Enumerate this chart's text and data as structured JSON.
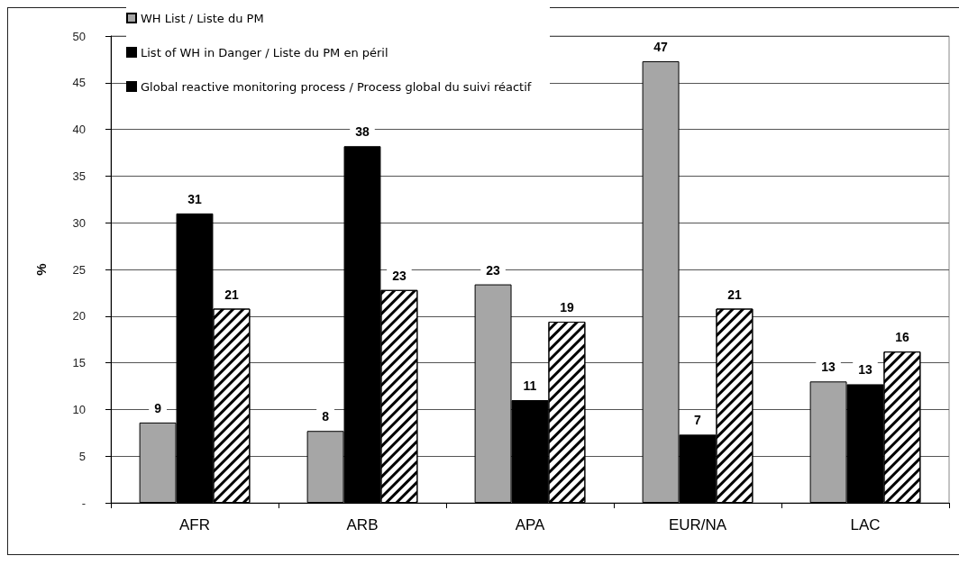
{
  "chart_data": {
    "type": "bar",
    "ylabel": "%",
    "categories": [
      "AFR",
      "ARB",
      "APA",
      "EUR/NA",
      "LAC"
    ],
    "series": [
      {
        "name": "WH List / Liste du PM",
        "color": "#a6a6a6",
        "values": [
          8.6,
          7.7,
          23.4,
          47.3,
          13.0
        ],
        "value_labels": [
          "9",
          "8",
          "23",
          "47",
          "13"
        ]
      },
      {
        "name": "List of WH in Danger / Liste du PM en péril",
        "color": "#000000",
        "values": [
          31.0,
          38.2,
          11.0,
          7.3,
          12.7
        ],
        "value_labels": [
          "31",
          "38",
          "11",
          "7",
          "13"
        ]
      },
      {
        "name": "Global reactive monitoring process / Process global du suivi réactif",
        "color": "#000000",
        "values": [
          20.8,
          22.8,
          19.4,
          20.8,
          16.2
        ],
        "value_labels": [
          "21",
          "23",
          "19",
          "21",
          "16"
        ]
      }
    ],
    "ylim": [
      0,
      50
    ],
    "yticks": [
      {
        "value": 0,
        "label": "-"
      },
      5,
      10,
      15,
      20,
      25,
      30,
      35,
      40,
      45,
      50
    ],
    "grid": "y",
    "legend": "top left"
  }
}
